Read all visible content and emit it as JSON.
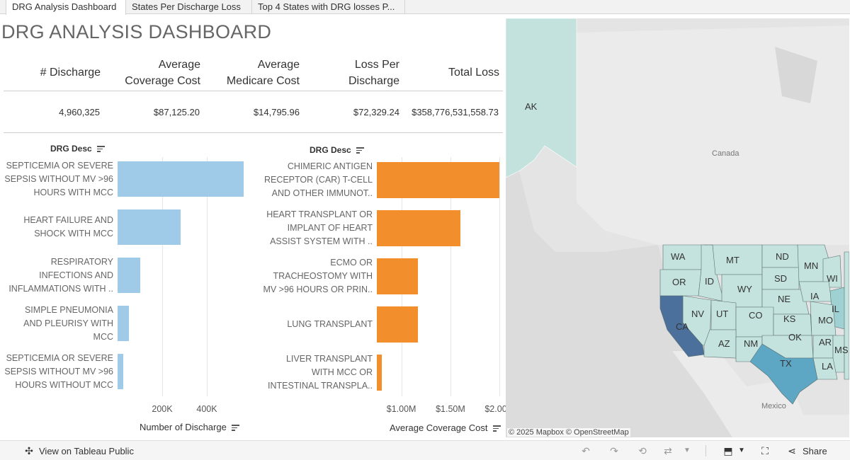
{
  "tabs": [
    {
      "label": "DRG Analysis Dashboard"
    },
    {
      "label": "States Per Discharge Loss"
    },
    {
      "label": "Top 4 States with DRG losses P..."
    }
  ],
  "title": "DRG ANALYSIS DASHBOARD",
  "kpi": {
    "headers": [
      "# Discharge",
      "Average\nCoverage Cost",
      "Average\nMedicare Cost",
      "Loss Per\nDischarge",
      "Total Loss"
    ],
    "values": [
      "4,960,325",
      "$87,125.20",
      "$14,795.96",
      "$72,329.24",
      "$358,776,531,558.73"
    ]
  },
  "chart_data": [
    {
      "type": "bar",
      "orientation": "horizontal",
      "category_header": "DRG Desc",
      "categories": [
        "SEPTICEMIA OR SEVERE\nSEPSIS WITHOUT MV >96\nHOURS WITH MCC",
        "HEART FAILURE AND\nSHOCK WITH MCC",
        "RESPIRATORY\nINFECTIONS AND\nINFLAMMATIONS WITH ..",
        "SIMPLE PNEUMONIA\nAND PLEURISY WITH\nMCC",
        "SEPTICEMIA OR SEVERE\nSEPSIS WITHOUT MV >96\nHOURS WITHOUT MCC"
      ],
      "values": [
        565000,
        283000,
        100000,
        50000,
        25000
      ],
      "xlabel": "Number of Discharge",
      "xlim": [
        0,
        600000
      ],
      "ticks": [
        {
          "value": 200000,
          "label": "200K"
        },
        {
          "value": 400000,
          "label": "400K"
        }
      ],
      "color": "#a0cbe8"
    },
    {
      "type": "bar",
      "orientation": "horizontal",
      "category_header": "DRG Desc",
      "categories": [
        "CHIMERIC ANTIGEN\nRECEPTOR (CAR) T-CELL\nAND OTHER IMMUNOT..",
        "HEART TRANSPLANT OR\nIMPLANT OF HEART\nASSIST SYSTEM WITH ..",
        "ECMO OR\nTRACHEOSTOMY WITH\nMV >96 HOURS OR PRIN..",
        "LUNG TRANSPLANT",
        "LIVER TRANSPLANT\nWITH MCC OR\nINTESTINAL TRANSPLA.."
      ],
      "values": [
        2000000,
        1605000,
        1165000,
        1165000,
        800000
      ],
      "xlabel": "Average Coverage Cost",
      "xlim": [
        750000,
        2020000
      ],
      "ticks": [
        {
          "value": 1000000,
          "label": "$1.00M"
        },
        {
          "value": 1500000,
          "label": "$1.50M"
        },
        {
          "value": 2000000,
          "label": "$2.00M"
        }
      ],
      "color": "#f28e2b"
    }
  ],
  "map": {
    "labels": {
      "canada": "Canada",
      "mexico": "Mexico"
    },
    "attribution": [
      "© 2025 Mapbox",
      "© OpenStreetMap"
    ],
    "states": [
      "AK",
      "WA",
      "MT",
      "ND",
      "MN",
      "WI",
      "OR",
      "ID",
      "WY",
      "SD",
      "IA",
      "IL",
      "NE",
      "NV",
      "UT",
      "CO",
      "KS",
      "MO",
      "CA",
      "AZ",
      "NM",
      "OK",
      "AR",
      "MS",
      "TX",
      "LA"
    ],
    "colors": {
      "light": "#c5e3de",
      "medium": "#9fd1d3",
      "dark": "#4a709b",
      "texas": "#5da6c4",
      "alaska": "#c3e2dd"
    }
  },
  "toolbar": {
    "view_on": "View on Tableau Public",
    "share": "Share"
  }
}
